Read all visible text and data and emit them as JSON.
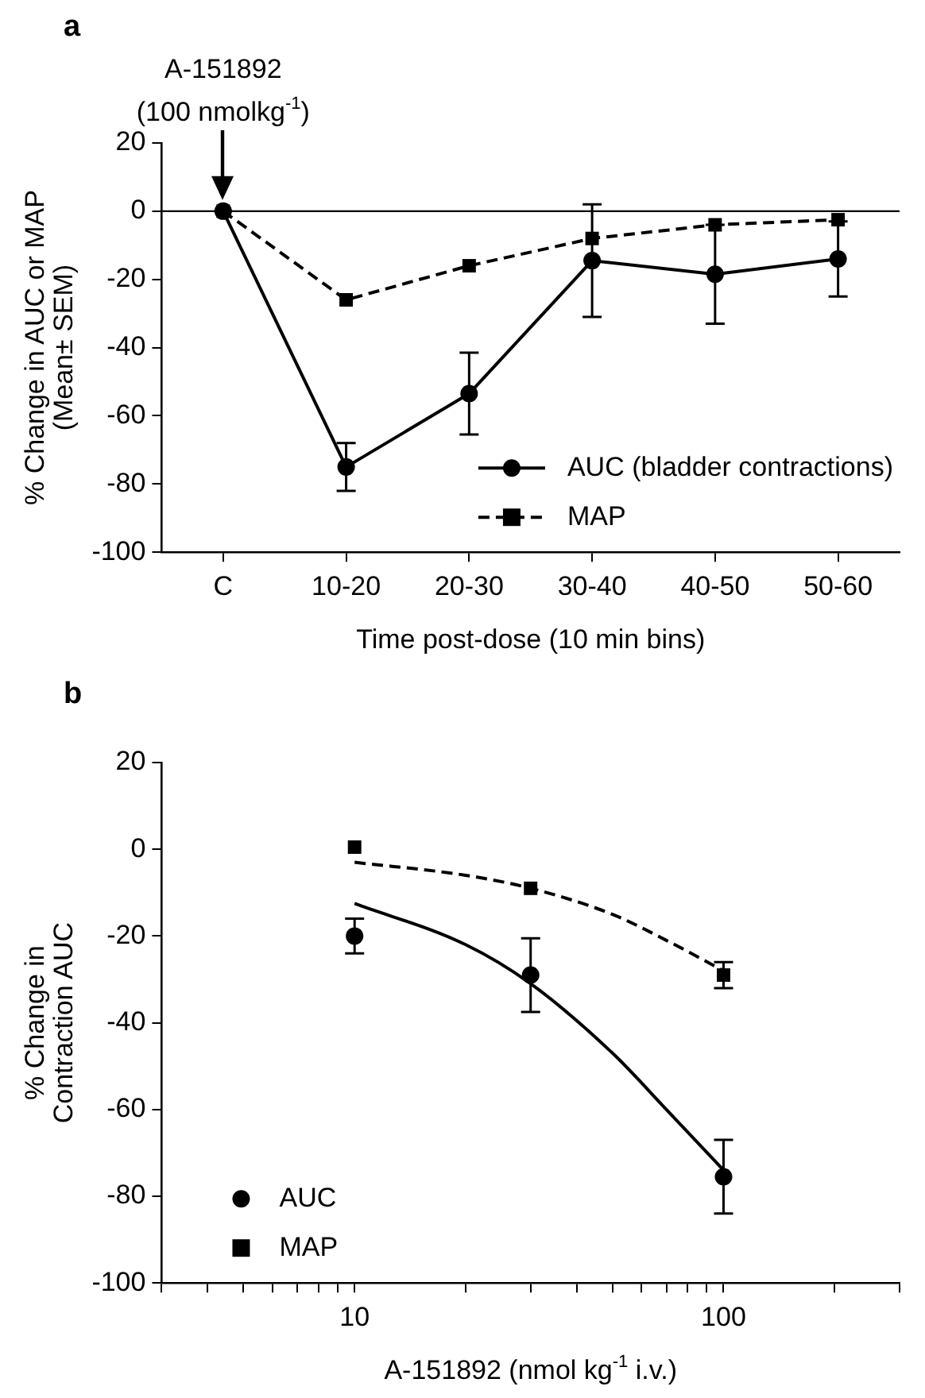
{
  "chart_data": [
    {
      "type": "line",
      "title": "a",
      "xlabel": "Time post-dose (10 min bins)",
      "ylabel": "% Change in AUC or MAP\n(Mean± SEM)",
      "categories": [
        "C",
        "10-20",
        "20-30",
        "30-40",
        "40-50",
        "50-60"
      ],
      "series": [
        {
          "name": "AUC (bladder contractions)",
          "color": "#000000",
          "marker": "circle",
          "line_style": "solid",
          "values": [
            0,
            -75,
            -53.5,
            -14.5,
            -18.5,
            -14
          ],
          "errors": [
            null,
            7,
            12,
            16.5,
            14.5,
            11
          ]
        },
        {
          "name": "MAP",
          "color": "#000000",
          "marker": "square",
          "line_style": "dashed",
          "values": [
            0,
            -26,
            -16,
            -8,
            -4,
            -2.5
          ]
        }
      ],
      "ylim": [
        -100,
        20
      ],
      "yticks": [
        -100,
        -80,
        -60,
        -40,
        -20,
        0,
        20
      ],
      "ref_lines": [
        {
          "axis": "y",
          "value": 0,
          "color": "#000000"
        }
      ],
      "annotations": [
        "A-151892\n(100 nmolkg$^{-1}$)"
      ],
      "legend": "bottom right",
      "grid": false
    },
    {
      "type": "scatter",
      "title": "b",
      "xlabel": "A-151892 (nmol kg$^{-1}$ i.v.)",
      "ylabel": "% Change in\nContraction AUC",
      "log": "x",
      "series": [
        {
          "name": "AUC",
          "color": "#000000",
          "marker": "circle",
          "x": [
            10,
            30,
            100
          ],
          "values": [
            -20,
            -29,
            -75.5
          ],
          "errors": [
            4,
            8.5,
            8.5
          ]
        },
        {
          "name": "MAP",
          "color": "#000000",
          "marker": "square",
          "x": [
            10,
            30,
            100
          ],
          "values": [
            0.5,
            -9,
            -29
          ],
          "errors": [
            null,
            null,
            3
          ]
        },
        {
          "type": "line",
          "color": "#000000",
          "marker": "none",
          "line_style": "solid",
          "x": [
            10,
            20,
            30,
            50,
            70,
            100
          ],
          "values": [
            -12.5,
            -22,
            -31,
            -47,
            -60,
            -74
          ]
        },
        {
          "type": "line",
          "color": "#000000",
          "marker": "none",
          "line_style": "dashed",
          "x": [
            10,
            20,
            30,
            50,
            70,
            100
          ],
          "values": [
            -3,
            -6,
            -9,
            -15,
            -21,
            -28
          ]
        }
      ],
      "xlim": [
        3,
        300
      ],
      "xticks": [
        {
          "value": 3,
          "label": null
        },
        {
          "value": 4,
          "label": null
        },
        {
          "value": 5,
          "label": null
        },
        {
          "value": 6,
          "label": null
        },
        {
          "value": 7,
          "label": null
        },
        {
          "value": 8,
          "label": null
        },
        {
          "value": 9,
          "label": null
        },
        10,
        {
          "value": 20,
          "label": null
        },
        {
          "value": 30,
          "label": null
        },
        {
          "value": 40,
          "label": null
        },
        {
          "value": 50,
          "label": null
        },
        {
          "value": 60,
          "label": null
        },
        {
          "value": 70,
          "label": null
        },
        {
          "value": 80,
          "label": null
        },
        {
          "value": 90,
          "label": null
        },
        100,
        {
          "value": 200,
          "label": null
        },
        {
          "value": 300,
          "label": null
        }
      ],
      "ylim": [
        -100,
        20
      ],
      "yticks": [
        -100,
        -80,
        -60,
        -40,
        -20,
        0,
        20
      ],
      "legend": "bottom left",
      "grid": false
    }
  ]
}
